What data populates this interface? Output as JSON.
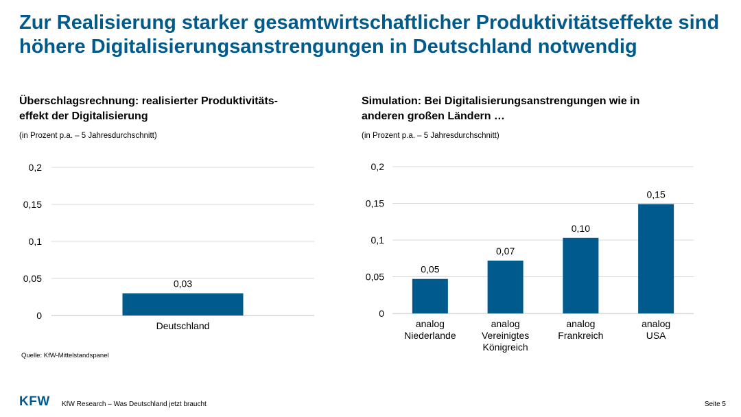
{
  "title": "Zur Realisierung starker gesamtwirtschaftlicher Produktivitätseffekte sind höhere Digitalisierungsanstrengungen in Deutschland notwendig",
  "left_panel": {
    "heading_line1": "Überschlagsrechnung: realisierter Produktivitäts-",
    "heading_line2": "effekt der Digitalisierung",
    "note": "(in Prozent p.a. – 5 Jahresdurchschnitt)"
  },
  "right_panel": {
    "heading_line1": "Simulation: Bei Digitalisierungsanstrengungen wie in",
    "heading_line2": "anderen großen Ländern …",
    "note": "(in Prozent p.a. – 5 Jahresdurchschnitt)"
  },
  "source": "Quelle: KfW-Mittelstandspanel",
  "footer": {
    "logo": "KFW",
    "text": "KfW Research – Was Deutschland jetzt braucht",
    "page": "Seite 5"
  },
  "colors": {
    "title": "#005a8c",
    "bar": "#005a8c",
    "grid": "#d9d9d9"
  },
  "chart_data": [
    {
      "type": "bar",
      "categories": [
        [
          "Deutschland"
        ]
      ],
      "values": [
        0.03
      ],
      "value_labels": [
        "0,03"
      ],
      "ylim": [
        0,
        0.2
      ],
      "yticks": [
        0,
        0.05,
        0.1,
        0.15,
        0.2
      ],
      "ytick_labels": [
        "0",
        "0,05",
        "0,1",
        "0,15",
        "0,2"
      ],
      "grid": true,
      "legend": "none"
    },
    {
      "type": "bar",
      "categories": [
        [
          "analog",
          "Niederlande"
        ],
        [
          "analog",
          "Vereinigtes",
          "Königreich"
        ],
        [
          "analog",
          "Frankreich"
        ],
        [
          "analog",
          "USA"
        ]
      ],
      "values": [
        0.047,
        0.072,
        0.103,
        0.149
      ],
      "value_labels": [
        "0,05",
        "0,07",
        "0,10",
        "0,15"
      ],
      "ylim": [
        0,
        0.2
      ],
      "yticks": [
        0,
        0.05,
        0.1,
        0.15,
        0.2
      ],
      "ytick_labels": [
        "0",
        "0,05",
        "0,1",
        "0,15",
        "0,2"
      ],
      "grid": true,
      "legend": "none"
    }
  ]
}
